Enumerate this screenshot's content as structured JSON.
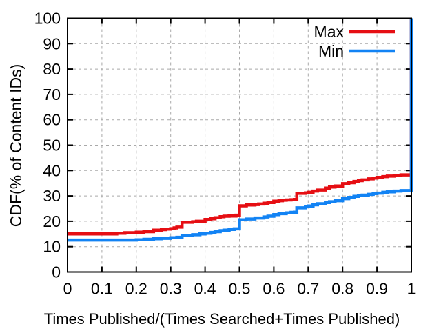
{
  "chart_data": {
    "type": "line",
    "title": "",
    "xlabel": "Times Published/(Times Searched+Times Published)",
    "ylabel": "CDF(% of Content IDs)",
    "xlim": [
      0,
      1
    ],
    "ylim": [
      0,
      100
    ],
    "grid": true,
    "legend_position": "top-right-inside",
    "interpolation": "step-after",
    "x_ticks": {
      "values": [
        0,
        0.1,
        0.2,
        0.3,
        0.4,
        0.5,
        0.6,
        0.7,
        0.8,
        0.9,
        1
      ],
      "labels": [
        "0",
        "0.1",
        "0.2",
        "0.3",
        "0.4",
        "0.5",
        "0.6",
        "0.7",
        "0.8",
        "0.9",
        "1"
      ]
    },
    "y_ticks": {
      "values": [
        0,
        10,
        20,
        30,
        40,
        50,
        60,
        70,
        80,
        90,
        100
      ],
      "labels": [
        "0",
        "10",
        "20",
        "30",
        "40",
        "50",
        "60",
        "70",
        "80",
        "90",
        "100"
      ]
    },
    "series": [
      {
        "name": "Max",
        "color": "#e60e13",
        "points": [
          [
            0,
            15.0
          ],
          [
            0.143,
            15.3
          ],
          [
            0.167,
            15.5
          ],
          [
            0.2,
            15.7
          ],
          [
            0.222,
            15.9
          ],
          [
            0.25,
            16.5
          ],
          [
            0.273,
            16.7
          ],
          [
            0.286,
            16.9
          ],
          [
            0.3,
            17.1
          ],
          [
            0.31,
            17.4
          ],
          [
            0.318,
            17.7
          ],
          [
            0.333,
            19.6
          ],
          [
            0.364,
            19.8
          ],
          [
            0.375,
            20.0
          ],
          [
            0.4,
            20.7
          ],
          [
            0.417,
            21.0
          ],
          [
            0.429,
            21.4
          ],
          [
            0.444,
            21.8
          ],
          [
            0.455,
            22.0
          ],
          [
            0.47,
            22.1
          ],
          [
            0.49,
            22.4
          ],
          [
            0.5,
            26.1
          ],
          [
            0.52,
            26.4
          ],
          [
            0.545,
            26.6
          ],
          [
            0.556,
            26.8
          ],
          [
            0.571,
            27.1
          ],
          [
            0.583,
            27.4
          ],
          [
            0.6,
            27.9
          ],
          [
            0.615,
            28.1
          ],
          [
            0.625,
            28.3
          ],
          [
            0.636,
            28.4
          ],
          [
            0.65,
            28.5
          ],
          [
            0.66,
            28.6
          ],
          [
            0.667,
            31.0
          ],
          [
            0.692,
            31.2
          ],
          [
            0.7,
            31.4
          ],
          [
            0.714,
            31.9
          ],
          [
            0.727,
            32.3
          ],
          [
            0.75,
            33.1
          ],
          [
            0.762,
            33.5
          ],
          [
            0.778,
            33.9
          ],
          [
            0.8,
            34.8
          ],
          [
            0.818,
            35.2
          ],
          [
            0.833,
            35.7
          ],
          [
            0.846,
            36.0
          ],
          [
            0.857,
            36.3
          ],
          [
            0.875,
            36.7
          ],
          [
            0.889,
            37.0
          ],
          [
            0.9,
            37.3
          ],
          [
            0.917,
            37.6
          ],
          [
            0.93,
            37.8
          ],
          [
            0.95,
            38.1
          ],
          [
            0.97,
            38.3
          ],
          [
            1,
            38.5
          ],
          [
            1,
            100
          ]
        ]
      },
      {
        "name": "Min",
        "color": "#1283f4",
        "points": [
          [
            0,
            12.6
          ],
          [
            0.2,
            12.7
          ],
          [
            0.222,
            12.9
          ],
          [
            0.25,
            13.1
          ],
          [
            0.273,
            13.3
          ],
          [
            0.3,
            13.5
          ],
          [
            0.318,
            13.7
          ],
          [
            0.333,
            14.4
          ],
          [
            0.364,
            14.7
          ],
          [
            0.385,
            15.0
          ],
          [
            0.4,
            15.3
          ],
          [
            0.417,
            15.6
          ],
          [
            0.429,
            15.9
          ],
          [
            0.444,
            16.3
          ],
          [
            0.455,
            16.5
          ],
          [
            0.47,
            16.8
          ],
          [
            0.485,
            17.0
          ],
          [
            0.5,
            20.6
          ],
          [
            0.52,
            20.9
          ],
          [
            0.545,
            21.3
          ],
          [
            0.571,
            21.7
          ],
          [
            0.583,
            22.0
          ],
          [
            0.6,
            22.6
          ],
          [
            0.615,
            23.0
          ],
          [
            0.636,
            23.3
          ],
          [
            0.65,
            23.5
          ],
          [
            0.66,
            23.6
          ],
          [
            0.667,
            25.3
          ],
          [
            0.692,
            25.7
          ],
          [
            0.7,
            26.0
          ],
          [
            0.714,
            26.5
          ],
          [
            0.727,
            26.9
          ],
          [
            0.75,
            27.4
          ],
          [
            0.762,
            27.7
          ],
          [
            0.778,
            28.1
          ],
          [
            0.8,
            28.9
          ],
          [
            0.818,
            29.4
          ],
          [
            0.833,
            29.8
          ],
          [
            0.846,
            30.1
          ],
          [
            0.857,
            30.3
          ],
          [
            0.875,
            30.6
          ],
          [
            0.889,
            30.9
          ],
          [
            0.9,
            31.1
          ],
          [
            0.917,
            31.4
          ],
          [
            0.93,
            31.6
          ],
          [
            0.95,
            31.9
          ],
          [
            0.97,
            32.1
          ],
          [
            1,
            32.3
          ],
          [
            1,
            100
          ]
        ]
      }
    ]
  },
  "style": {
    "grid_color": "#a9a9a9",
    "border_color": "#000000",
    "text_color": "#000000",
    "background_color": "#ffffff"
  }
}
